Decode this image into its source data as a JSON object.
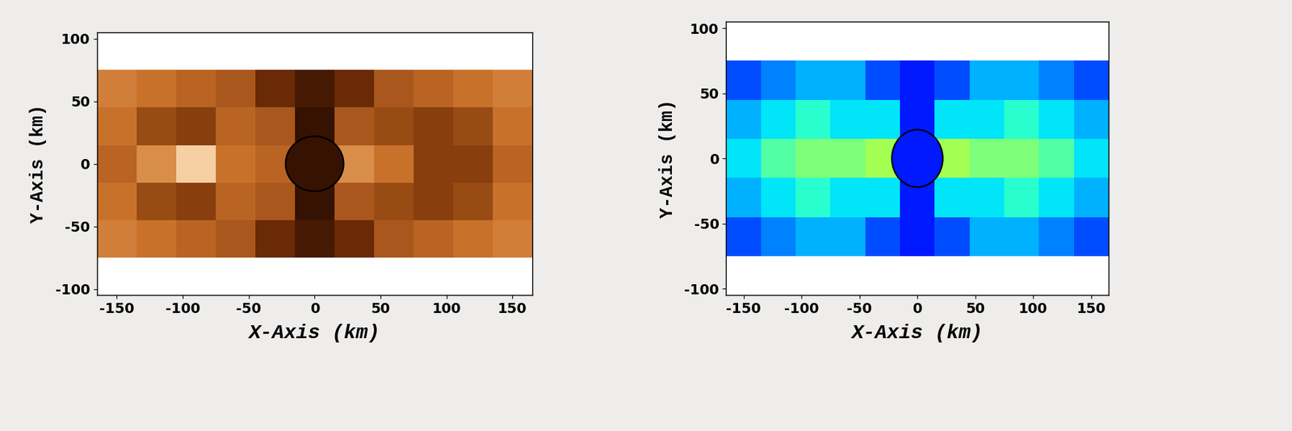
{
  "chart_data": [
    {
      "type": "heatmap",
      "x_label": "X-Axis (km)",
      "y_label": "Y-Axis (km)",
      "xlim": [
        -165,
        165
      ],
      "ylim": [
        -105,
        105
      ],
      "xticks": [
        -150,
        -100,
        -50,
        0,
        50,
        100,
        150
      ],
      "yticks": [
        -100,
        -50,
        0,
        50,
        100
      ],
      "color": "copper",
      "x": [
        -150,
        -120,
        -90,
        -60,
        -30,
        0,
        30,
        60,
        90,
        120,
        150
      ],
      "y": [
        -90,
        -60,
        -30,
        0,
        30,
        60,
        90
      ],
      "clim": [
        0,
        1
      ],
      "cells": [
        [
          null,
          null,
          null,
          null,
          null,
          null,
          null,
          null,
          null,
          null,
          null
        ],
        [
          0.55,
          0.5,
          0.45,
          0.4,
          0.2,
          0.1,
          0.2,
          0.4,
          0.45,
          0.5,
          0.55
        ],
        [
          0.5,
          0.35,
          0.3,
          0.45,
          0.4,
          0.05,
          0.4,
          0.35,
          0.3,
          0.35,
          0.5
        ],
        [
          0.45,
          0.6,
          0.85,
          0.5,
          0.45,
          0.05,
          0.6,
          0.5,
          0.3,
          0.3,
          0.45
        ],
        [
          0.5,
          0.35,
          0.3,
          0.45,
          0.4,
          0.05,
          0.4,
          0.35,
          0.3,
          0.35,
          0.5
        ],
        [
          0.55,
          0.5,
          0.45,
          0.4,
          0.2,
          0.1,
          0.2,
          0.4,
          0.45,
          0.5,
          0.55
        ],
        [
          null,
          null,
          null,
          null,
          null,
          null,
          null,
          null,
          null,
          null,
          null
        ]
      ],
      "circle": {
        "x": 0,
        "y": 0,
        "radius": 22
      }
    },
    {
      "type": "heatmap",
      "x_label": "X-Axis (km)",
      "y_label": "Y-Axis (km)",
      "xlim": [
        -165,
        165
      ],
      "ylim": [
        -105,
        105
      ],
      "xticks": [
        -150,
        -100,
        -50,
        0,
        50,
        100,
        150
      ],
      "yticks": [
        -100,
        -50,
        0,
        50,
        100
      ],
      "color": "jet",
      "x": [
        -150,
        -120,
        -90,
        -60,
        -30,
        0,
        30,
        60,
        90,
        120,
        150
      ],
      "y": [
        -90,
        -60,
        -30,
        0,
        30,
        60,
        90
      ],
      "clim": [
        0,
        1
      ],
      "cells": [
        [
          null,
          null,
          null,
          null,
          null,
          null,
          null,
          null,
          null,
          null,
          null
        ],
        [
          0.2,
          0.25,
          0.3,
          0.3,
          0.2,
          0.15,
          0.2,
          0.3,
          0.3,
          0.25,
          0.2
        ],
        [
          0.3,
          0.35,
          0.4,
          0.35,
          0.35,
          0.15,
          0.35,
          0.35,
          0.4,
          0.35,
          0.3
        ],
        [
          0.35,
          0.45,
          0.5,
          0.5,
          0.55,
          0.15,
          0.55,
          0.5,
          0.5,
          0.45,
          0.35
        ],
        [
          0.3,
          0.35,
          0.4,
          0.35,
          0.35,
          0.15,
          0.35,
          0.35,
          0.4,
          0.35,
          0.3
        ],
        [
          0.2,
          0.25,
          0.3,
          0.3,
          0.2,
          0.15,
          0.2,
          0.3,
          0.3,
          0.25,
          0.2
        ],
        [
          null,
          null,
          null,
          null,
          null,
          null,
          null,
          null,
          null,
          null,
          null
        ]
      ],
      "circle": {
        "x": 0,
        "y": 0,
        "radius": 22
      }
    }
  ]
}
